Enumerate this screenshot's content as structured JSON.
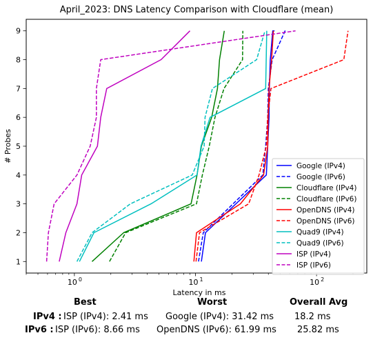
{
  "chart_data": {
    "type": "line",
    "title": "April_2023: DNS Latency Comparison with Cloudflare (mean)",
    "xlabel": "Latency in ms",
    "ylabel": "# Probes",
    "xscale": "log",
    "xlim": [
      0.4,
      260
    ],
    "ylim": [
      0.6,
      9.4
    ],
    "x_ticks": [
      {
        "value": 1,
        "label": "10",
        "sup": "0"
      },
      {
        "value": 10,
        "label": "10",
        "sup": "1"
      },
      {
        "value": 100,
        "label": "10",
        "sup": "2"
      }
    ],
    "y_ticks": [
      1,
      2,
      3,
      4,
      5,
      6,
      7,
      8,
      9
    ],
    "legend_position": "lower-right",
    "series": [
      {
        "name": "Google (IPv4)",
        "color": "#0000ff",
        "dash": "solid",
        "x": [
          11.2,
          12.1,
          38.5,
          39.5,
          40.5,
          40.8,
          41.5,
          43.5,
          45.0
        ],
        "y": [
          1,
          2,
          4,
          5,
          6,
          7,
          8,
          9,
          9
        ]
      },
      {
        "name": "Google (IPv6)",
        "color": "#0000ff",
        "dash": "dashed",
        "x": [
          10.6,
          11.6,
          36.0,
          38.0,
          39.5,
          40.0,
          43.0,
          55.0,
          57.0
        ],
        "y": [
          1,
          2,
          4,
          5,
          6,
          7,
          8,
          9,
          9
        ]
      },
      {
        "name": "Cloudflare (IPv4)",
        "color": "#008000",
        "dash": "solid",
        "x": [
          1.4,
          2.55,
          9.2,
          10.3,
          11.2,
          13.6,
          15.2,
          15.8,
          17.3
        ],
        "y": [
          1,
          2,
          3,
          4,
          5,
          6,
          7,
          8,
          9
        ]
      },
      {
        "name": "Cloudflare (IPv6)",
        "color": "#008000",
        "dash": "dashed",
        "x": [
          1.95,
          2.65,
          10.2,
          11.4,
          13.0,
          14.5,
          17.2,
          24.5,
          24.6
        ],
        "y": [
          1,
          2,
          3,
          4,
          5,
          6,
          7,
          8,
          9
        ]
      },
      {
        "name": "OpenDNS (IPv4)",
        "color": "#ff0000",
        "dash": "solid",
        "x": [
          9.7,
          10.2,
          23.5,
          36.5,
          39.5,
          39.8,
          40.5,
          42.5,
          44.0
        ],
        "y": [
          1,
          2,
          3,
          4,
          5,
          6,
          7,
          8,
          9
        ]
      },
      {
        "name": "OpenDNS (IPv6)",
        "color": "#ff0000",
        "dash": "dashed",
        "x": [
          10.1,
          10.8,
          27.5,
          33.5,
          38.5,
          39.5,
          42.0,
          168.0,
          182.0
        ],
        "y": [
          1,
          2,
          3,
          4,
          5,
          6,
          7,
          8,
          9
        ]
      },
      {
        "name": "Quad9 (IPv4)",
        "color": "#00bfbf",
        "dash": "solid",
        "x": [
          1.1,
          1.45,
          4.3,
          10.3,
          11.1,
          13.2,
          38.0,
          38.4,
          38.8
        ],
        "y": [
          1,
          2,
          3,
          4,
          5,
          6,
          7,
          8,
          9
        ]
      },
      {
        "name": "Quad9 (IPv6)",
        "color": "#00bfbf",
        "dash": "dashed",
        "x": [
          1.05,
          1.4,
          2.9,
          9.4,
          11.8,
          12.0,
          13.8,
          32.0,
          37.5
        ],
        "y": [
          1,
          2,
          3,
          4,
          5,
          6,
          7,
          8,
          9
        ]
      },
      {
        "name": "ISP (IPv4)",
        "color": "#bf00bf",
        "dash": "solid",
        "x": [
          0.75,
          0.85,
          1.05,
          1.15,
          1.55,
          1.65,
          1.85,
          5.2,
          9.0
        ],
        "y": [
          1,
          2,
          3,
          4,
          5,
          6,
          7,
          8,
          9
        ]
      },
      {
        "name": "ISP (IPv6)",
        "color": "#bf00bf",
        "dash": "dashed",
        "x": [
          0.59,
          0.61,
          0.68,
          1.05,
          1.35,
          1.52,
          1.52,
          1.65,
          67.0
        ],
        "y": [
          1,
          2,
          3,
          4,
          5,
          6,
          7,
          8,
          9
        ]
      }
    ]
  },
  "summary": {
    "headers": {
      "best": "Best",
      "worst": "Worst",
      "overall": "Overall Avg"
    },
    "rows": [
      {
        "label": "IPv4 :",
        "best": "ISP (IPv4): 2.41 ms",
        "worst": "Google (IPv4): 31.42 ms",
        "overall": "18.2 ms"
      },
      {
        "label": "IPv6 :",
        "best": "ISP (IPv6): 8.66 ms",
        "worst": "OpenDNS (IPv6): 61.99 ms",
        "overall": "25.82 ms"
      }
    ]
  }
}
